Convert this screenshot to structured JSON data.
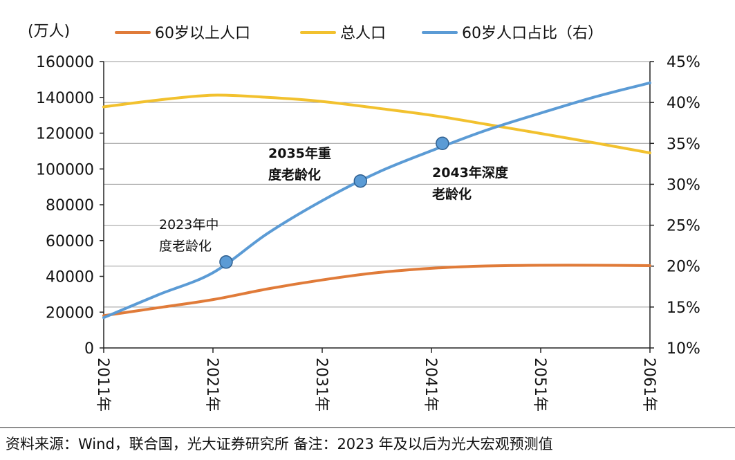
{
  "chart_data": {
    "type": "line",
    "y_unit": "(万人)",
    "x": [
      2011,
      2016,
      2021,
      2026,
      2031,
      2036,
      2041,
      2046,
      2051,
      2056,
      2061
    ],
    "x_ticks": [
      "2011年",
      "2021年",
      "2031年",
      "2041年",
      "2051年",
      "2061年"
    ],
    "y_left_ticks": [
      "0",
      "20000",
      "40000",
      "60000",
      "80000",
      "100000",
      "120000",
      "140000",
      "160000"
    ],
    "y_right_ticks": [
      "10%",
      "15%",
      "20%",
      "25%",
      "30%",
      "35%",
      "40%",
      "45%"
    ],
    "ylim_left": [
      0,
      160000
    ],
    "ylim_right": [
      0.1,
      0.45
    ],
    "grid": true,
    "legend_position": "top",
    "series": [
      {
        "name": "60岁以上人口",
        "axis": "left",
        "color": "#E07B39",
        "values": [
          18000,
          22500,
          27000,
          33000,
          38000,
          42000,
          44500,
          45800,
          46200,
          46200,
          46000
        ]
      },
      {
        "name": "总人口",
        "axis": "left",
        "color": "#F2C12E",
        "values": [
          134700,
          138500,
          141200,
          140000,
          137700,
          134000,
          130000,
          125000,
          119800,
          114500,
          109000
        ]
      },
      {
        "name": "60岁人口占比（右）",
        "axis": "right",
        "color": "#5B9BD5",
        "values": [
          0.137,
          0.165,
          0.192,
          0.24,
          0.28,
          0.314,
          0.341,
          0.366,
          0.387,
          0.407,
          0.424
        ]
      }
    ],
    "markers": [
      {
        "x": 2022.2,
        "value": 0.205,
        "label_lines": [
          "2023年中",
          "度老龄化"
        ],
        "bold": false
      },
      {
        "x": 2034.5,
        "value": 0.304,
        "label_lines": [
          "2035年重",
          "度老龄化"
        ],
        "bold": true
      },
      {
        "x": 2042.0,
        "value": 0.35,
        "label_lines": [
          "2043年深度",
          "老龄化"
        ],
        "bold": true
      }
    ]
  },
  "footer": {
    "text": "资料来源：Wind，联合国，光大证券研究所  备注：2023 年及以后为光大宏观预测值"
  }
}
